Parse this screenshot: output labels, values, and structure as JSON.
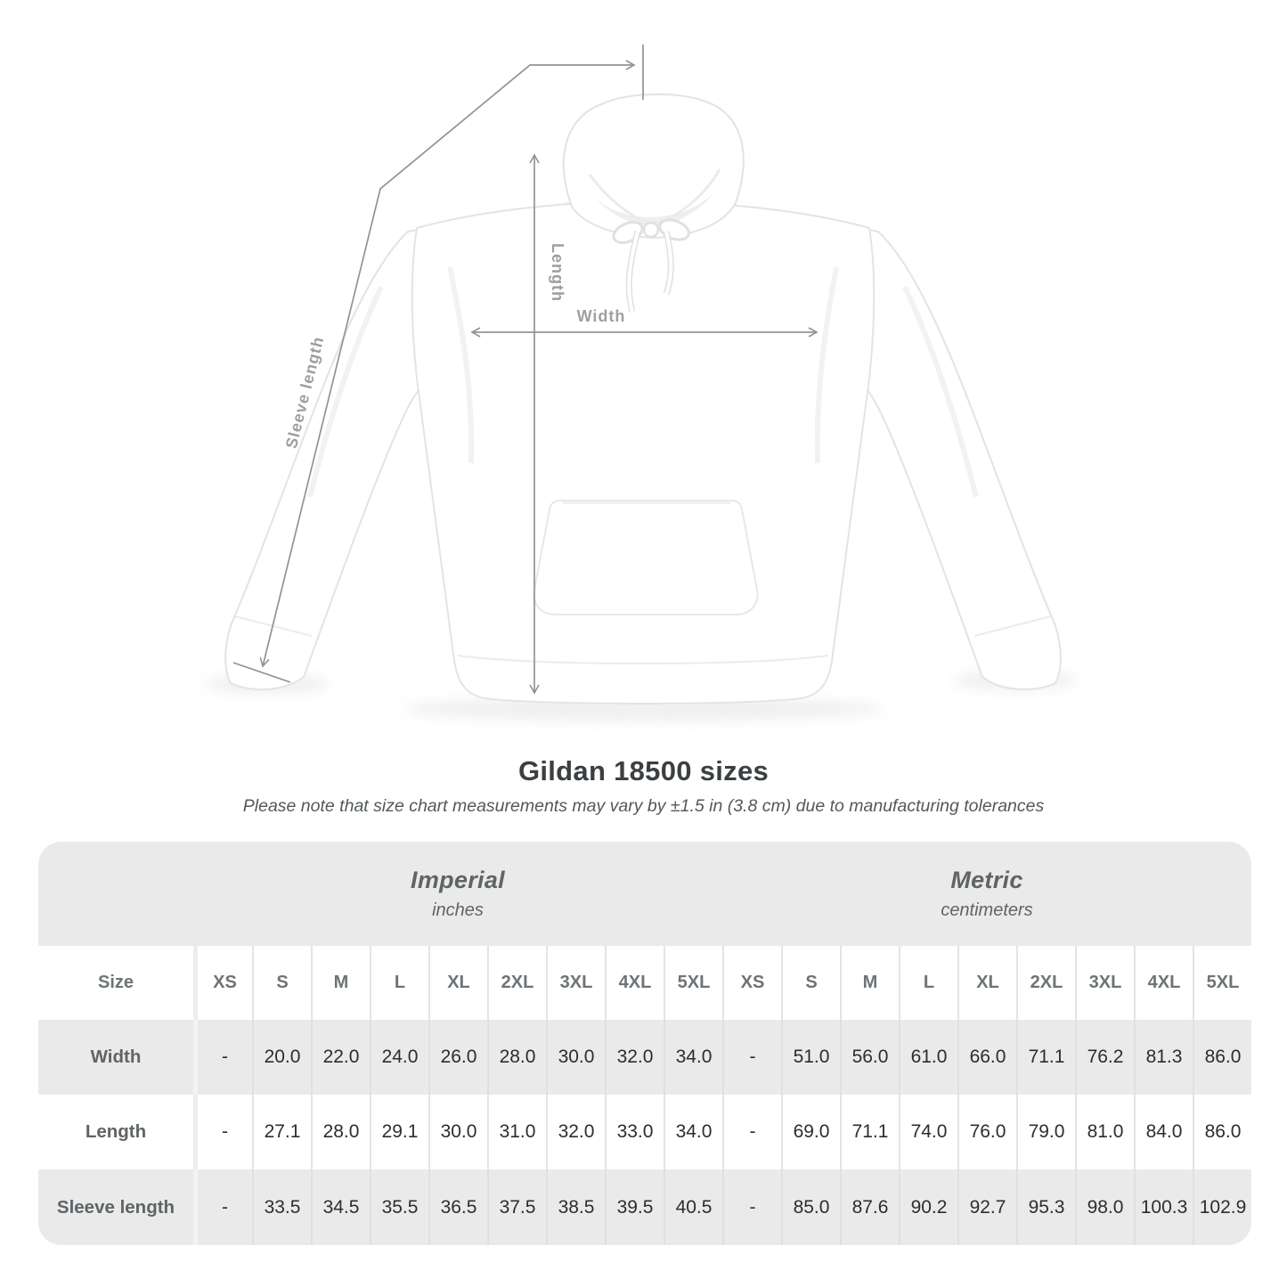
{
  "header": {
    "title": "Gildan 18500 sizes",
    "subtitle": "Please note that size chart measurements may vary by ±1.5 in (3.8 cm) due to manufacturing tolerances"
  },
  "diagram": {
    "labels": {
      "length": "Length",
      "width": "Width",
      "sleeve": "Sleeve length"
    }
  },
  "table": {
    "size_label": "Size",
    "unit_groups": [
      {
        "label": "Imperial",
        "sublabel": "inches"
      },
      {
        "label": "Metric",
        "sublabel": "centimeters"
      }
    ],
    "sizes": [
      "XS",
      "S",
      "M",
      "L",
      "XL",
      "2XL",
      "3XL",
      "4XL",
      "5XL"
    ],
    "rows": [
      {
        "label": "Width",
        "imperial": [
          "-",
          "20.0",
          "22.0",
          "24.0",
          "26.0",
          "28.0",
          "30.0",
          "32.0",
          "34.0"
        ],
        "metric": [
          "-",
          "51.0",
          "56.0",
          "61.0",
          "66.0",
          "71.1",
          "76.2",
          "81.3",
          "86.0"
        ]
      },
      {
        "label": "Length",
        "imperial": [
          "-",
          "27.1",
          "28.0",
          "29.1",
          "30.0",
          "31.0",
          "32.0",
          "33.0",
          "34.0"
        ],
        "metric": [
          "-",
          "69.0",
          "71.1",
          "74.0",
          "76.0",
          "79.0",
          "81.0",
          "84.0",
          "86.0"
        ]
      },
      {
        "label": "Sleeve length",
        "imperial": [
          "-",
          "33.5",
          "34.5",
          "35.5",
          "36.5",
          "37.5",
          "38.5",
          "39.5",
          "40.5"
        ],
        "metric": [
          "-",
          "85.0",
          "87.6",
          "90.2",
          "92.7",
          "95.3",
          "98.0",
          "100.3",
          "102.9"
        ]
      }
    ]
  },
  "chart_data": {
    "type": "table",
    "title": "Gildan 18500 sizes",
    "note": "Please note that size chart measurements may vary by ±1.5 in (3.8 cm) due to manufacturing tolerances",
    "column_groups": [
      {
        "label": "Imperial",
        "unit": "inches",
        "sizes": [
          "XS",
          "S",
          "M",
          "L",
          "XL",
          "2XL",
          "3XL",
          "4XL",
          "5XL"
        ]
      },
      {
        "label": "Metric",
        "unit": "centimeters",
        "sizes": [
          "XS",
          "S",
          "M",
          "L",
          "XL",
          "2XL",
          "3XL",
          "4XL",
          "5XL"
        ]
      }
    ],
    "rows": [
      {
        "measure": "Width",
        "imperial": [
          "-",
          20.0,
          22.0,
          24.0,
          26.0,
          28.0,
          30.0,
          32.0,
          34.0
        ],
        "metric": [
          "-",
          51.0,
          56.0,
          61.0,
          66.0,
          71.1,
          76.2,
          81.3,
          86.0
        ]
      },
      {
        "measure": "Length",
        "imperial": [
          "-",
          27.1,
          28.0,
          29.1,
          30.0,
          31.0,
          32.0,
          33.0,
          34.0
        ],
        "metric": [
          "-",
          69.0,
          71.1,
          74.0,
          76.0,
          79.0,
          81.0,
          84.0,
          86.0
        ]
      },
      {
        "measure": "Sleeve length",
        "imperial": [
          "-",
          33.5,
          34.5,
          35.5,
          36.5,
          37.5,
          38.5,
          39.5,
          40.5
        ],
        "metric": [
          "-",
          85.0,
          87.6,
          90.2,
          92.7,
          95.3,
          98.0,
          100.3,
          102.9
        ]
      }
    ],
    "diagram_measures": [
      "Length",
      "Width",
      "Sleeve length"
    ]
  },
  "colors": {
    "table_band": "#eaeaea",
    "measure_line": "#8f9496",
    "measure_label": "#9b9fa1",
    "value_text": "#2d2d2d",
    "label_text": "#5f6467"
  }
}
